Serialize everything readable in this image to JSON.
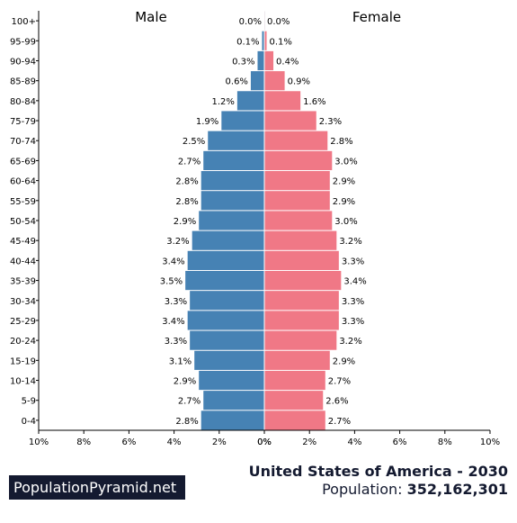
{
  "chart_data": {
    "type": "bar",
    "orientation": "horizontal",
    "subtype": "population-pyramid",
    "title": "United States of America - 2030",
    "categories": [
      "0-4",
      "5-9",
      "10-14",
      "15-19",
      "20-24",
      "25-29",
      "30-34",
      "35-39",
      "40-44",
      "45-49",
      "50-54",
      "55-59",
      "60-64",
      "65-69",
      "70-74",
      "75-79",
      "80-84",
      "85-89",
      "90-94",
      "95-99",
      "100+"
    ],
    "series": [
      {
        "name": "Male",
        "color": "#4682b4",
        "values": [
          2.8,
          2.7,
          2.9,
          3.1,
          3.3,
          3.4,
          3.3,
          3.5,
          3.4,
          3.2,
          2.9,
          2.8,
          2.8,
          2.7,
          2.5,
          1.9,
          1.2,
          0.6,
          0.3,
          0.1,
          0.0
        ]
      },
      {
        "name": "Female",
        "color": "#f07886",
        "values": [
          2.7,
          2.6,
          2.7,
          2.9,
          3.2,
          3.3,
          3.3,
          3.4,
          3.3,
          3.2,
          3.0,
          2.9,
          2.9,
          3.0,
          2.8,
          2.3,
          1.6,
          0.9,
          0.4,
          0.1,
          0.0
        ]
      }
    ],
    "xlim": [
      -10,
      10
    ],
    "xticks": [
      "10%",
      "8%",
      "6%",
      "4%",
      "2%",
      "0%",
      "0%",
      "2%",
      "4%",
      "6%",
      "8%",
      "10%"
    ],
    "grid": false
  },
  "header": {
    "male_label": "Male",
    "female_label": "Female"
  },
  "footer": {
    "brand": "PopulationPyramid.net",
    "country_year": "United States of America - 2030",
    "population_label": "Population: ",
    "population_value": "352,162,301"
  }
}
